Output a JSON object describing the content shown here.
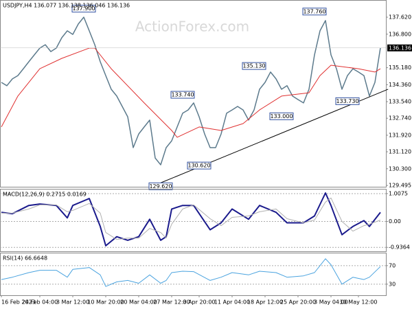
{
  "chart_data": [
    {
      "type": "line",
      "title": "USDJPY,H4 136.077 136.138 136.046 136.136",
      "watermark": "ActionForex.com",
      "series": [
        {
          "color": "#5c7a8c",
          "width": 1.5,
          "values": [
            134.47,
            134.31,
            134.64,
            134.8,
            135.13,
            135.47,
            135.8,
            136.13,
            136.29,
            135.96,
            136.13,
            136.63,
            136.96,
            136.79,
            137.29,
            137.62,
            136.96,
            136.29,
            135.47,
            134.8,
            134.14,
            133.81,
            133.31,
            132.81,
            131.32,
            131.98,
            132.32,
            132.65,
            130.82,
            130.49,
            131.32,
            131.65,
            132.32,
            132.98,
            133.14,
            133.48,
            132.81,
            131.98,
            131.32,
            131.32,
            131.98,
            132.98,
            133.14,
            133.31,
            133.14,
            132.65,
            133.14,
            134.14,
            134.47,
            134.97,
            134.64,
            134.14,
            134.31,
            133.81,
            133.64,
            133.48,
            134.14,
            135.8,
            136.96,
            137.46,
            135.8,
            135.13,
            134.14,
            134.8,
            135.13,
            134.97,
            134.8,
            133.81,
            134.47,
            136.14
          ]
        },
        {
          "color": "#e03030",
          "width": 1,
          "x": [
            0,
            3,
            7,
            11,
            16,
            17,
            20,
            26,
            31,
            32,
            36,
            40,
            44,
            47,
            51,
            56,
            58,
            60,
            65,
            68,
            69
          ],
          "values": [
            132.32,
            133.81,
            135.13,
            135.63,
            136.13,
            136.13,
            135.13,
            133.48,
            132.15,
            131.82,
            132.32,
            132.15,
            132.48,
            133.14,
            133.81,
            133.97,
            134.8,
            135.3,
            135.13,
            134.97,
            135.13
          ]
        }
      ],
      "trendline": {
        "color": "#000000",
        "x": [
          29,
          70.4
        ],
        "values": [
          129.62,
          134.14
        ]
      },
      "annotations": [
        {
          "label": "137.900",
          "x": 15,
          "value": 137.9
        },
        {
          "label": "129.620",
          "x": 29,
          "value": 129.62
        },
        {
          "label": "133.740",
          "x": 33,
          "value": 133.74
        },
        {
          "label": "130.620",
          "x": 36,
          "value": 130.62
        },
        {
          "label": "135.130",
          "x": 46,
          "value": 135.13
        },
        {
          "label": "133.000",
          "x": 51,
          "value": 133.0
        },
        {
          "label": "137.760",
          "x": 57,
          "value": 137.76
        },
        {
          "label": "133.730",
          "x": 63,
          "value": 133.73
        }
      ],
      "last_price": 136.136,
      "ylim": [
        129.43,
        138.45
      ],
      "yticks": [
        129.495,
        {
          "value": 130.3,
          "label": "130.300"
        },
        {
          "value": 131.12,
          "label": "131.120"
        },
        {
          "value": 131.92,
          "label": "131.920"
        },
        {
          "value": 132.74,
          "label": "132.740"
        },
        {
          "value": 133.54,
          "label": "133.540"
        },
        {
          "value": 134.36,
          "label": "134.360"
        },
        {
          "value": 135.18,
          "label": "135.180"
        },
        {
          "value": 136.8,
          "label": "136.800"
        },
        {
          "value": 137.62,
          "label": "137.620"
        }
      ]
    },
    {
      "type": "line",
      "title": "MACD(12,26,9) 0.2715 0.0169",
      "series": [
        {
          "color": "#1a1a8c",
          "width": 2,
          "x": [
            0,
            2,
            5,
            7,
            10,
            12,
            13,
            16,
            18,
            19,
            21,
            23,
            25,
            27,
            29,
            30,
            31,
            33,
            35,
            38,
            40,
            42,
            45,
            47,
            50,
            52,
            55,
            57,
            59,
            60,
            62,
            64,
            66,
            67,
            69
          ],
          "values": [
            0.33,
            0.28,
            0.58,
            0.63,
            0.58,
            0.13,
            0.58,
            0.83,
            -0.18,
            -0.88,
            -0.55,
            -0.68,
            -0.55,
            0.08,
            -0.68,
            -0.55,
            0.45,
            0.58,
            0.58,
            -0.3,
            -0.05,
            0.45,
            0.08,
            0.58,
            0.33,
            -0.05,
            -0.05,
            0.2,
            1.03,
            0.58,
            -0.48,
            -0.18,
            0.03,
            -0.18,
            0.33
          ]
        },
        {
          "color": "#b0b0b0",
          "width": 1,
          "x": [
            0,
            2,
            5,
            7,
            10,
            12,
            13,
            16,
            18,
            19,
            21,
            23,
            25,
            27,
            29,
            30,
            31,
            33,
            35,
            38,
            40,
            42,
            45,
            47,
            50,
            52,
            55,
            57,
            59,
            60,
            62,
            64,
            66,
            67,
            69
          ],
          "values": [
            0.3,
            0.3,
            0.45,
            0.6,
            0.6,
            0.35,
            0.4,
            0.65,
            0.3,
            -0.4,
            -0.65,
            -0.6,
            -0.6,
            -0.25,
            -0.4,
            -0.6,
            -0.1,
            0.45,
            0.6,
            0.1,
            -0.15,
            0.15,
            0.2,
            0.35,
            0.45,
            0.1,
            -0.05,
            0.05,
            0.7,
            0.85,
            0.0,
            -0.35,
            -0.15,
            -0.1,
            0.05
          ]
        }
      ],
      "ylim": [
        -1.08,
        1.18
      ],
      "yticks": [
        1.0075,
        {
          "value": 0,
          "label": "0.00"
        },
        -0.9364
      ],
      "grid": true
    },
    {
      "type": "line",
      "title": "RSI(14) 66.6648",
      "series": [
        {
          "color": "#4aa3df",
          "width": 1,
          "x": [
            0,
            2,
            5,
            7,
            10,
            12,
            13,
            16,
            18,
            19,
            21,
            23,
            25,
            27,
            29,
            30,
            31,
            33,
            35,
            38,
            40,
            42,
            45,
            47,
            50,
            52,
            55,
            57,
            59,
            60,
            62,
            64,
            66,
            67,
            69
          ],
          "values": [
            40,
            45,
            55,
            60,
            60,
            45,
            62,
            66,
            50,
            25,
            35,
            38,
            32,
            50,
            32,
            38,
            55,
            58,
            57,
            38,
            45,
            55,
            50,
            58,
            55,
            45,
            48,
            55,
            85,
            72,
            30,
            45,
            40,
            45,
            68
          ]
        }
      ],
      "ylim": [
        6,
        98
      ],
      "yticks": [
        70,
        30
      ],
      "grid": true,
      "categories": [
        "16 Feb 2023",
        null,
        null,
        null,
        null,
        null,
        null,
        "24 Feb 04:00",
        null,
        null,
        null,
        null,
        null,
        "3 Mar 12:00",
        null,
        null,
        null,
        null,
        null,
        "10 Mar 20:00",
        null,
        null,
        null,
        null,
        null,
        "20 Mar 04:00",
        null,
        null,
        null,
        null,
        null,
        "27 Mar 12:00",
        null,
        null,
        null,
        null,
        "3 Apr 20:00",
        null,
        null,
        null,
        null,
        null,
        "11 Apr 04:00",
        null,
        null,
        null,
        null,
        null,
        "18 Apr 12:00",
        null,
        null,
        null,
        null,
        null,
        "25 Apr 20:00",
        null,
        null,
        null,
        null,
        null,
        "3 May 04:00",
        null,
        null,
        null,
        null,
        "10 May 12:00",
        null,
        null,
        null,
        null
      ]
    }
  ]
}
